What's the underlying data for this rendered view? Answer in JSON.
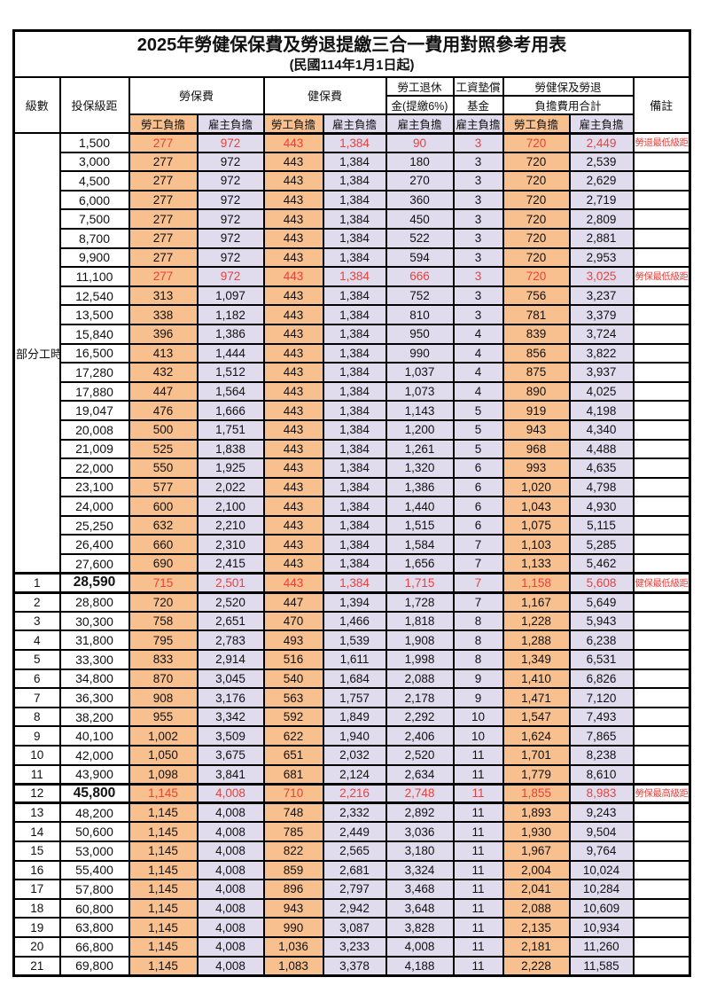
{
  "title": "2025年勞健保保費及勞退提繳三合一費用對照參考用表",
  "subtitle": "(民國114年1月1日起)",
  "header": {
    "level": "級數",
    "bracket": "投保級距",
    "labor_insurance": "勞保費",
    "health_insurance": "健保費",
    "pension_line1": "勞工退休",
    "pension_line2": "金(提繳6%)",
    "wage_fund_line1": "工資墊償",
    "wage_fund_line2": "基金",
    "total_line1": "勞健保及勞退",
    "total_line2": "負擔費用合計",
    "remark": "備註",
    "employee_share": "勞工負擔",
    "employer_share": "雇主負擔"
  },
  "part_time": {
    "label": "部分工時",
    "rows": 23
  },
  "colors": {
    "employee_bg": "#F9C08F",
    "employer_bg": "#E0DCEE",
    "highlight_red": "#E8413C",
    "border": "#000000"
  },
  "rows": [
    {
      "level": "",
      "bracket": "1,500",
      "values": [
        "277",
        "972",
        "443",
        "1,384",
        "90",
        "3",
        "720",
        "2,449"
      ],
      "remark": "勞退最低級距",
      "red": true
    },
    {
      "level": "",
      "bracket": "3,000",
      "values": [
        "277",
        "972",
        "443",
        "1,384",
        "180",
        "3",
        "720",
        "2,539"
      ],
      "remark": ""
    },
    {
      "level": "",
      "bracket": "4,500",
      "values": [
        "277",
        "972",
        "443",
        "1,384",
        "270",
        "3",
        "720",
        "2,629"
      ],
      "remark": ""
    },
    {
      "level": "",
      "bracket": "6,000",
      "values": [
        "277",
        "972",
        "443",
        "1,384",
        "360",
        "3",
        "720",
        "2,719"
      ],
      "remark": ""
    },
    {
      "level": "",
      "bracket": "7,500",
      "values": [
        "277",
        "972",
        "443",
        "1,384",
        "450",
        "3",
        "720",
        "2,809"
      ],
      "remark": ""
    },
    {
      "level": "",
      "bracket": "8,700",
      "values": [
        "277",
        "972",
        "443",
        "1,384",
        "522",
        "3",
        "720",
        "2,881"
      ],
      "remark": ""
    },
    {
      "level": "",
      "bracket": "9,900",
      "values": [
        "277",
        "972",
        "443",
        "1,384",
        "594",
        "3",
        "720",
        "2,953"
      ],
      "remark": ""
    },
    {
      "level": "",
      "bracket": "11,100",
      "values": [
        "277",
        "972",
        "443",
        "1,384",
        "666",
        "3",
        "720",
        "3,025"
      ],
      "remark": "勞保最低級距",
      "red": true
    },
    {
      "level": "",
      "bracket": "12,540",
      "values": [
        "313",
        "1,097",
        "443",
        "1,384",
        "752",
        "3",
        "756",
        "3,237"
      ],
      "remark": ""
    },
    {
      "level": "",
      "bracket": "13,500",
      "values": [
        "338",
        "1,182",
        "443",
        "1,384",
        "810",
        "3",
        "781",
        "3,379"
      ],
      "remark": ""
    },
    {
      "level": "",
      "bracket": "15,840",
      "values": [
        "396",
        "1,386",
        "443",
        "1,384",
        "950",
        "4",
        "839",
        "3,724"
      ],
      "remark": ""
    },
    {
      "level": "",
      "bracket": "16,500",
      "values": [
        "413",
        "1,444",
        "443",
        "1,384",
        "990",
        "4",
        "856",
        "3,822"
      ],
      "remark": ""
    },
    {
      "level": "",
      "bracket": "17,280",
      "values": [
        "432",
        "1,512",
        "443",
        "1,384",
        "1,037",
        "4",
        "875",
        "3,937"
      ],
      "remark": ""
    },
    {
      "level": "",
      "bracket": "17,880",
      "values": [
        "447",
        "1,564",
        "443",
        "1,384",
        "1,073",
        "4",
        "890",
        "4,025"
      ],
      "remark": ""
    },
    {
      "level": "",
      "bracket": "19,047",
      "values": [
        "476",
        "1,666",
        "443",
        "1,384",
        "1,143",
        "5",
        "919",
        "4,198"
      ],
      "remark": ""
    },
    {
      "level": "",
      "bracket": "20,008",
      "values": [
        "500",
        "1,751",
        "443",
        "1,384",
        "1,200",
        "5",
        "943",
        "4,340"
      ],
      "remark": ""
    },
    {
      "level": "",
      "bracket": "21,009",
      "values": [
        "525",
        "1,838",
        "443",
        "1,384",
        "1,261",
        "5",
        "968",
        "4,488"
      ],
      "remark": ""
    },
    {
      "level": "",
      "bracket": "22,000",
      "values": [
        "550",
        "1,925",
        "443",
        "1,384",
        "1,320",
        "6",
        "993",
        "4,635"
      ],
      "remark": ""
    },
    {
      "level": "",
      "bracket": "23,100",
      "values": [
        "577",
        "2,022",
        "443",
        "1,384",
        "1,386",
        "6",
        "1,020",
        "4,798"
      ],
      "remark": ""
    },
    {
      "level": "",
      "bracket": "24,000",
      "values": [
        "600",
        "2,100",
        "443",
        "1,384",
        "1,440",
        "6",
        "1,043",
        "4,930"
      ],
      "remark": ""
    },
    {
      "level": "",
      "bracket": "25,250",
      "values": [
        "632",
        "2,210",
        "443",
        "1,384",
        "1,515",
        "6",
        "1,075",
        "5,115"
      ],
      "remark": ""
    },
    {
      "level": "",
      "bracket": "26,400",
      "values": [
        "660",
        "2,310",
        "443",
        "1,384",
        "1,584",
        "7",
        "1,103",
        "5,285"
      ],
      "remark": ""
    },
    {
      "level": "",
      "bracket": "27,600",
      "values": [
        "690",
        "2,415",
        "443",
        "1,384",
        "1,656",
        "7",
        "1,133",
        "5,462"
      ],
      "remark": ""
    },
    {
      "level": "1",
      "bracket": "28,590",
      "values": [
        "715",
        "2,501",
        "443",
        "1,384",
        "1,715",
        "7",
        "1,158",
        "5,608"
      ],
      "remark": "健保最低級距",
      "red": true,
      "bold": true
    },
    {
      "level": "2",
      "bracket": "28,800",
      "values": [
        "720",
        "2,520",
        "447",
        "1,394",
        "1,728",
        "7",
        "1,167",
        "5,649"
      ],
      "remark": ""
    },
    {
      "level": "3",
      "bracket": "30,300",
      "values": [
        "758",
        "2,651",
        "470",
        "1,466",
        "1,818",
        "8",
        "1,228",
        "5,943"
      ],
      "remark": ""
    },
    {
      "level": "4",
      "bracket": "31,800",
      "values": [
        "795",
        "2,783",
        "493",
        "1,539",
        "1,908",
        "8",
        "1,288",
        "6,238"
      ],
      "remark": ""
    },
    {
      "level": "5",
      "bracket": "33,300",
      "values": [
        "833",
        "2,914",
        "516",
        "1,611",
        "1,998",
        "8",
        "1,349",
        "6,531"
      ],
      "remark": ""
    },
    {
      "level": "6",
      "bracket": "34,800",
      "values": [
        "870",
        "3,045",
        "540",
        "1,684",
        "2,088",
        "9",
        "1,410",
        "6,826"
      ],
      "remark": ""
    },
    {
      "level": "7",
      "bracket": "36,300",
      "values": [
        "908",
        "3,176",
        "563",
        "1,757",
        "2,178",
        "9",
        "1,471",
        "7,120"
      ],
      "remark": ""
    },
    {
      "level": "8",
      "bracket": "38,200",
      "values": [
        "955",
        "3,342",
        "592",
        "1,849",
        "2,292",
        "10",
        "1,547",
        "7,493"
      ],
      "remark": ""
    },
    {
      "level": "9",
      "bracket": "40,100",
      "values": [
        "1,002",
        "3,509",
        "622",
        "1,940",
        "2,406",
        "10",
        "1,624",
        "7,865"
      ],
      "remark": ""
    },
    {
      "level": "10",
      "bracket": "42,000",
      "values": [
        "1,050",
        "3,675",
        "651",
        "2,032",
        "2,520",
        "11",
        "1,701",
        "8,238"
      ],
      "remark": ""
    },
    {
      "level": "11",
      "bracket": "43,900",
      "values": [
        "1,098",
        "3,841",
        "681",
        "2,124",
        "2,634",
        "11",
        "1,779",
        "8,610"
      ],
      "remark": ""
    },
    {
      "level": "12",
      "bracket": "45,800",
      "values": [
        "1,145",
        "4,008",
        "710",
        "2,216",
        "2,748",
        "11",
        "1,855",
        "8,983"
      ],
      "remark": "勞保最高級距",
      "red": true,
      "bold": true
    },
    {
      "level": "13",
      "bracket": "48,200",
      "values": [
        "1,145",
        "4,008",
        "748",
        "2,332",
        "2,892",
        "11",
        "1,893",
        "9,243"
      ],
      "remark": ""
    },
    {
      "level": "14",
      "bracket": "50,600",
      "values": [
        "1,145",
        "4,008",
        "785",
        "2,449",
        "3,036",
        "11",
        "1,930",
        "9,504"
      ],
      "remark": ""
    },
    {
      "level": "15",
      "bracket": "53,000",
      "values": [
        "1,145",
        "4,008",
        "822",
        "2,565",
        "3,180",
        "11",
        "1,967",
        "9,764"
      ],
      "remark": ""
    },
    {
      "level": "16",
      "bracket": "55,400",
      "values": [
        "1,145",
        "4,008",
        "859",
        "2,681",
        "3,324",
        "11",
        "2,004",
        "10,024"
      ],
      "remark": ""
    },
    {
      "level": "17",
      "bracket": "57,800",
      "values": [
        "1,145",
        "4,008",
        "896",
        "2,797",
        "3,468",
        "11",
        "2,041",
        "10,284"
      ],
      "remark": ""
    },
    {
      "level": "18",
      "bracket": "60,800",
      "values": [
        "1,145",
        "4,008",
        "943",
        "2,942",
        "3,648",
        "11",
        "2,088",
        "10,609"
      ],
      "remark": ""
    },
    {
      "level": "19",
      "bracket": "63,800",
      "values": [
        "1,145",
        "4,008",
        "990",
        "3,087",
        "3,828",
        "11",
        "2,135",
        "10,934"
      ],
      "remark": ""
    },
    {
      "level": "20",
      "bracket": "66,800",
      "values": [
        "1,145",
        "4,008",
        "1,036",
        "3,233",
        "4,008",
        "11",
        "2,181",
        "11,260"
      ],
      "remark": ""
    },
    {
      "level": "21",
      "bracket": "69,800",
      "values": [
        "1,145",
        "4,008",
        "1,083",
        "3,378",
        "4,188",
        "11",
        "2,228",
        "11,585"
      ],
      "remark": ""
    }
  ]
}
